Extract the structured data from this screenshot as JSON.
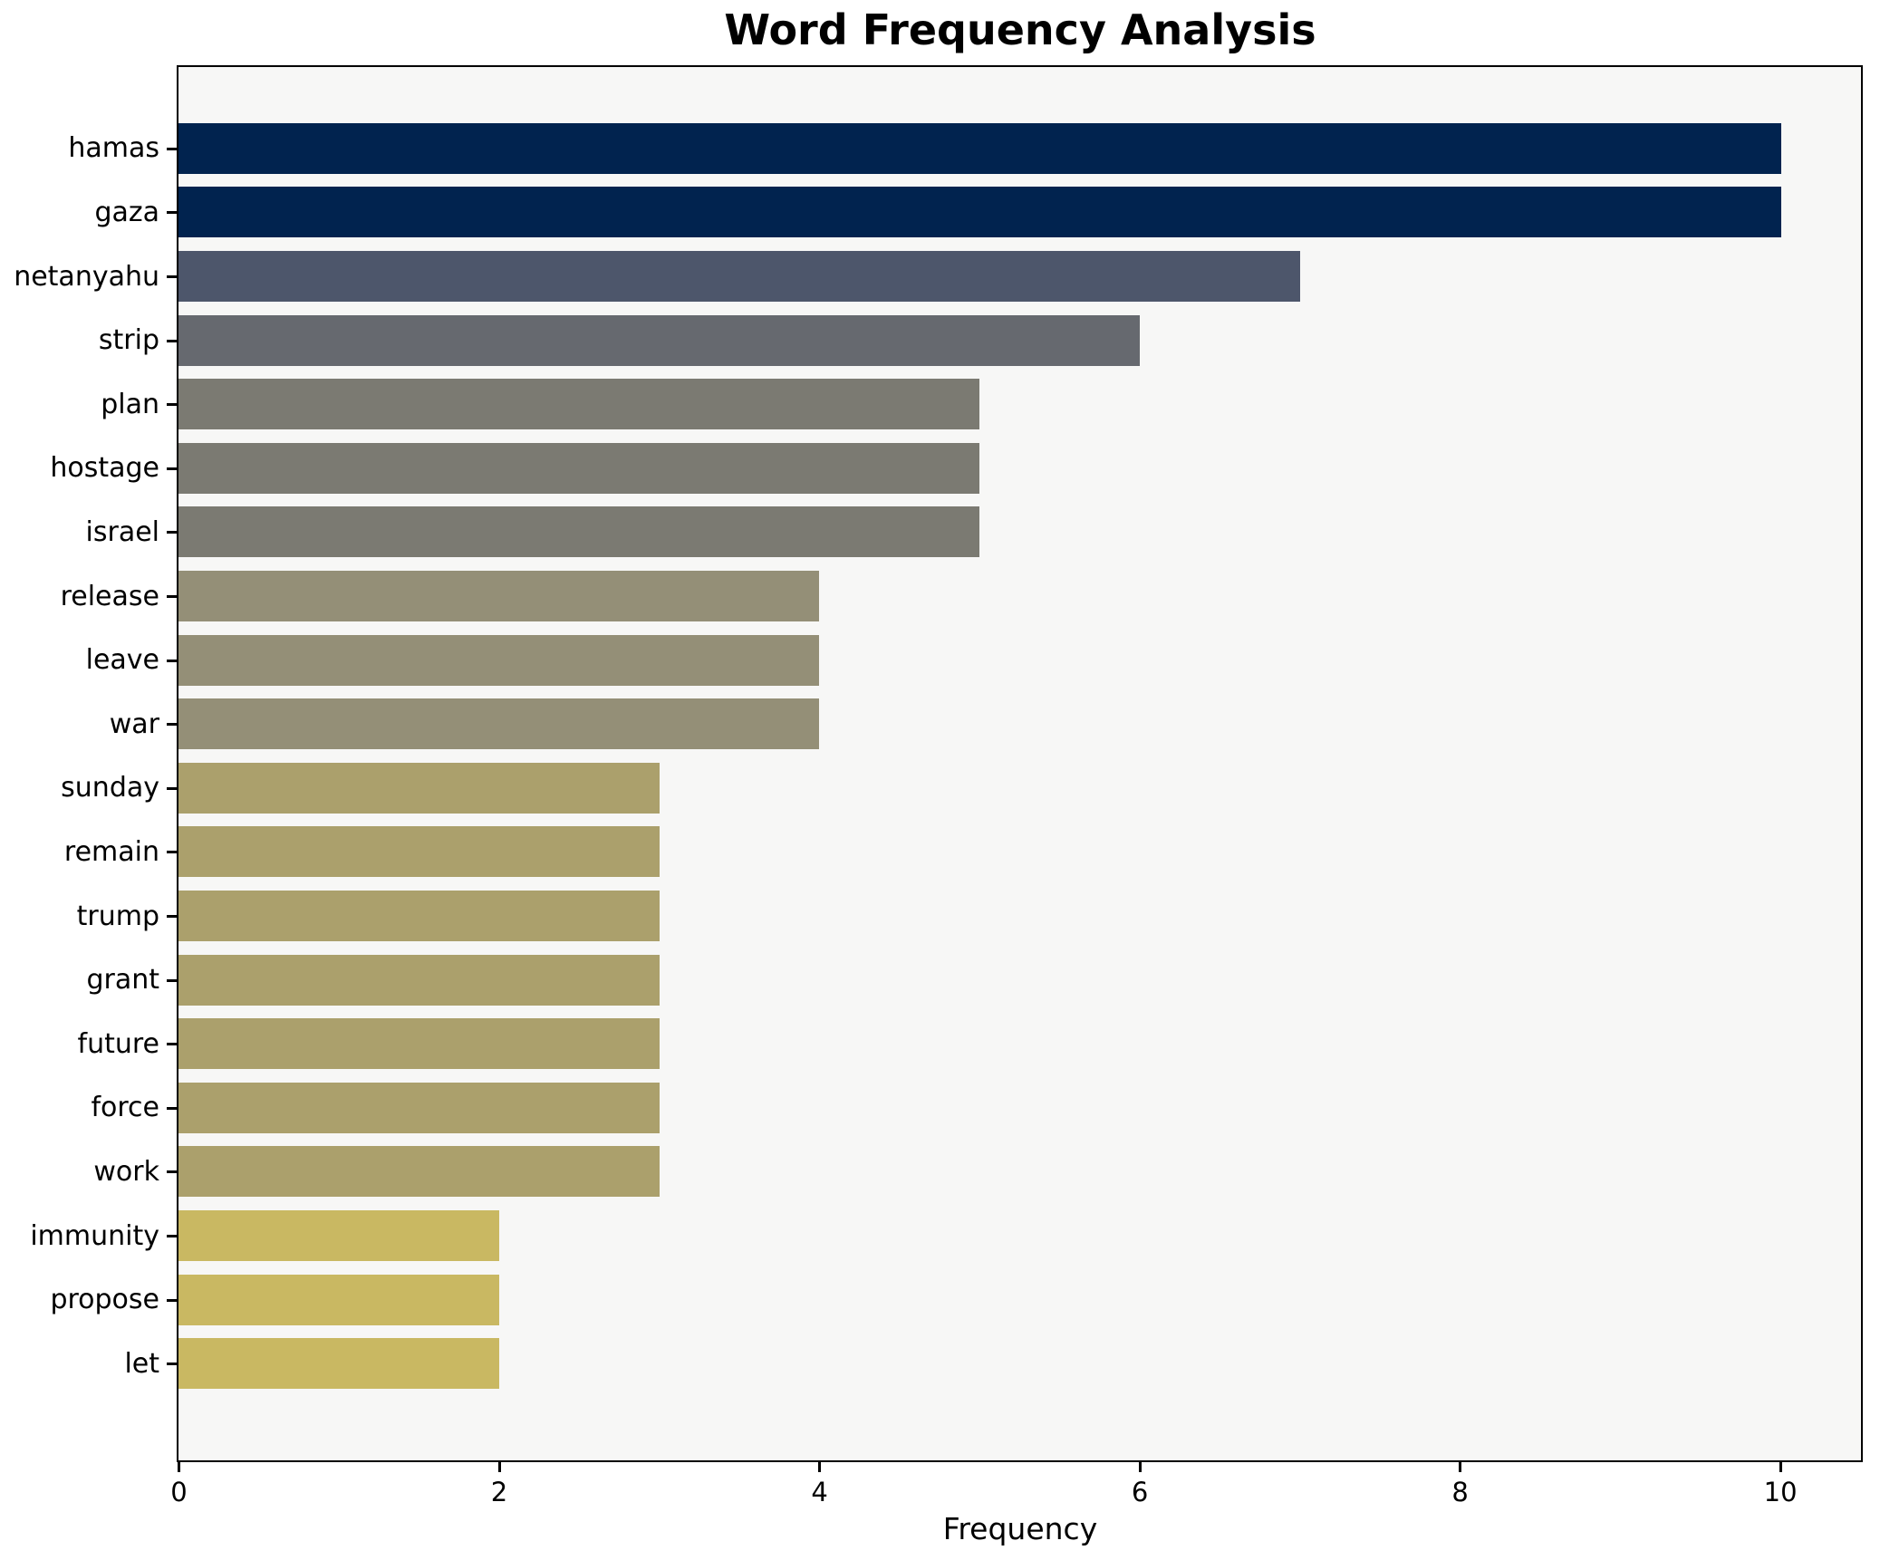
{
  "title": "Word Frequency Analysis",
  "chart_data": {
    "type": "bar",
    "orientation": "horizontal",
    "title": "Word Frequency Analysis",
    "xlabel": "Frequency",
    "ylabel": "",
    "categories": [
      "hamas",
      "gaza",
      "netanyahu",
      "strip",
      "plan",
      "hostage",
      "israel",
      "release",
      "leave",
      "war",
      "sunday",
      "remain",
      "trump",
      "grant",
      "future",
      "force",
      "work",
      "immunity",
      "propose",
      "let"
    ],
    "values": [
      10,
      10,
      7,
      6,
      5,
      5,
      5,
      4,
      4,
      4,
      3,
      3,
      3,
      3,
      3,
      3,
      3,
      2,
      2,
      2
    ],
    "bar_colors": [
      "#01234f",
      "#01234f",
      "#4d566b",
      "#66696f",
      "#7b7a72",
      "#7b7a72",
      "#7b7a72",
      "#948f77",
      "#948f77",
      "#948f77",
      "#aba06c",
      "#aba06c",
      "#aba06c",
      "#aba06c",
      "#aba06c",
      "#aba06c",
      "#aba06c",
      "#c9b862",
      "#c9b862",
      "#c9b862"
    ],
    "xlim": [
      0,
      10.5
    ],
    "xticks": [
      0,
      2,
      4,
      6,
      8,
      10
    ],
    "grid": false,
    "legend": null,
    "plot_bg_color": "#f7f7f6",
    "figure_bg_color": "#ffffff",
    "spine_color": "#000000"
  }
}
